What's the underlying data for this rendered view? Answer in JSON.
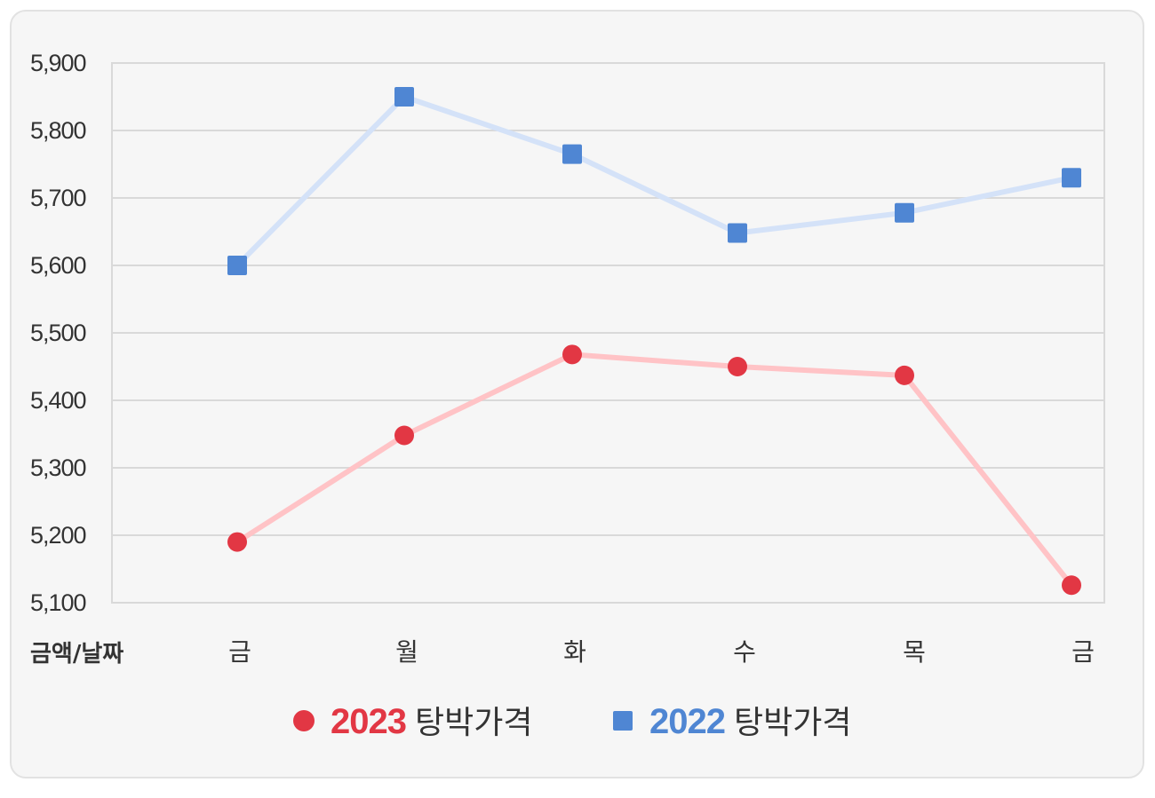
{
  "chart_data": {
    "type": "line",
    "xlabel": "금액/날짜",
    "ylabel": "",
    "categories": [
      "금",
      "월",
      "화",
      "수",
      "목",
      "금"
    ],
    "yticks": [
      "5,900",
      "5,800",
      "5,700",
      "5,600",
      "5,500",
      "5,400",
      "5,300",
      "5,200",
      "5,100"
    ],
    "ylim": [
      5100,
      5900
    ],
    "grid": true,
    "legend_position": "bottom",
    "series": [
      {
        "year": "2023",
        "name_suffix": "탕박가격",
        "marker": "circle",
        "marker_color": "#e23744",
        "line_color": "#ffc3c6",
        "values": [
          5190,
          5348,
          5468,
          5450,
          5437,
          5126
        ]
      },
      {
        "year": "2022",
        "name_suffix": "탕박가격",
        "marker": "square",
        "marker_color": "#4f86d3",
        "line_color": "#d4e2f8",
        "values": [
          5600,
          5850,
          5765,
          5648,
          5678,
          5730
        ]
      }
    ]
  }
}
